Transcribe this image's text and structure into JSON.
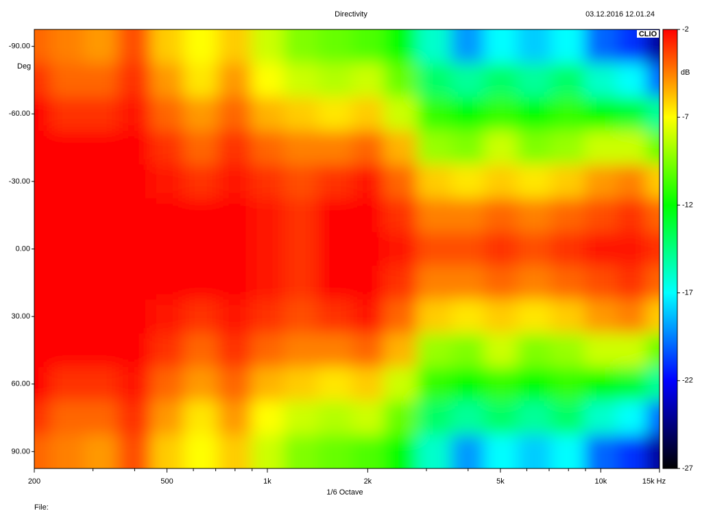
{
  "chart_data": {
    "type": "heatmap",
    "title": "Directivity",
    "timestamp": "03.12.2016 12.01.24",
    "x_label": "1/6 Octave",
    "y_label": "Deg",
    "colorbar_label": "dB",
    "file_label": "File:",
    "logo": "CLIO",
    "log_x": true,
    "xlim": [
      200,
      15000
    ],
    "xticks": [
      200,
      500,
      {
        "value": 1000,
        "label": "1k"
      },
      {
        "value": 2000,
        "label": "2k"
      },
      {
        "value": 5000,
        "label": "5k"
      },
      {
        "value": 10000,
        "label": "10k"
      },
      {
        "value": 15000,
        "label": "15k Hz"
      }
    ],
    "xminorticks": [
      300,
      400,
      600,
      700,
      800,
      900,
      3000,
      4000,
      6000,
      7000,
      8000,
      9000
    ],
    "ylim": [
      -97.5,
      97.5
    ],
    "yticks": [
      {
        "value": -90,
        "label": "-90.00"
      },
      {
        "value": -60,
        "label": "-60.00"
      },
      {
        "value": -30,
        "label": "-30.00"
      },
      {
        "value": 0,
        "label": "0.00"
      },
      {
        "value": 30,
        "label": "30.00"
      },
      {
        "value": 60,
        "label": "60.00"
      },
      {
        "value": 90,
        "label": "90.00"
      }
    ],
    "zlim": [
      -27,
      -2
    ],
    "zticks": [
      -2,
      -7,
      -12,
      -17,
      -22,
      -27
    ],
    "colormap": [
      "#000000",
      "#0000ff",
      "#00ffff",
      "#00ff00",
      "#ffff00",
      "#ff0000"
    ],
    "x": [
      200,
      250,
      315,
      400,
      500,
      630,
      800,
      1000,
      1250,
      1600,
      2000,
      2500,
      3150,
      4000,
      5000,
      6300,
      8000,
      10000,
      12500,
      15000
    ],
    "y": [
      -90,
      -75,
      -60,
      -45,
      -30,
      -15,
      0,
      15,
      30,
      45,
      60,
      75,
      90
    ],
    "z": [
      [
        -4,
        -4.5,
        -5,
        -3.5,
        -6,
        -7,
        -6,
        -8,
        -9.5,
        -10,
        -10.5,
        -12,
        -16,
        -19,
        -17,
        -18,
        -17,
        -20,
        -21,
        -24
      ],
      [
        -3,
        -4,
        -4,
        -3,
        -5,
        -6.5,
        -5,
        -7,
        -8,
        -8.5,
        -8,
        -10,
        -14,
        -15,
        -14,
        -15,
        -14,
        -16,
        -17,
        -20
      ],
      [
        -2,
        -3,
        -3,
        -2.5,
        -4,
        -5,
        -4,
        -5.5,
        -6,
        -6.5,
        -6,
        -8,
        -11,
        -12,
        -11,
        -12,
        -11,
        -12,
        -13,
        -15
      ],
      [
        -2,
        -2,
        -2,
        -2,
        -3,
        -4,
        -3,
        -4,
        -4.5,
        -4.5,
        -4,
        -5.5,
        -9,
        -9.5,
        -8,
        -9.5,
        -9,
        -8,
        -8,
        -10
      ],
      [
        -2,
        -2,
        -2,
        -2,
        -2.5,
        -3,
        -2.5,
        -3,
        -3.5,
        -3,
        -2.5,
        -4,
        -6,
        -6.5,
        -6,
        -6.5,
        -6,
        -5,
        -4.5,
        -6
      ],
      [
        -2,
        -2,
        -2,
        -2,
        -2,
        -2,
        -2,
        -2.5,
        -3,
        -2,
        -2,
        -3,
        -4.5,
        -4.5,
        -4,
        -4.5,
        -4,
        -3.5,
        -3,
        -4
      ],
      [
        -2,
        -2,
        -2,
        -2,
        -2,
        -2,
        -2,
        -2.5,
        -3,
        -2,
        -2,
        -2.5,
        -3.5,
        -3.5,
        -3,
        -3.5,
        -3,
        -2.5,
        -2.5,
        -3
      ],
      [
        -2,
        -2,
        -2,
        -2,
        -2,
        -2,
        -2,
        -2.5,
        -3,
        -2,
        -2,
        -3,
        -4.5,
        -4.5,
        -4,
        -4.5,
        -4,
        -3.5,
        -3,
        -4
      ],
      [
        -2,
        -2,
        -2,
        -2,
        -2.5,
        -3,
        -2.5,
        -3,
        -3.5,
        -3,
        -2.5,
        -4,
        -6,
        -6.5,
        -6,
        -6.5,
        -6,
        -5,
        -4.5,
        -6
      ],
      [
        -2,
        -2,
        -2,
        -2,
        -3,
        -4,
        -3,
        -4,
        -4.5,
        -4.5,
        -4,
        -5.5,
        -9,
        -9.5,
        -8,
        -9.5,
        -9,
        -8,
        -8,
        -10
      ],
      [
        -2,
        -3,
        -3,
        -2.5,
        -4,
        -5,
        -4,
        -5.5,
        -6,
        -6.5,
        -6,
        -8,
        -11,
        -12,
        -11,
        -12,
        -11,
        -12,
        -13,
        -15
      ],
      [
        -3,
        -4,
        -4,
        -3,
        -5,
        -6.5,
        -5,
        -7,
        -8,
        -8.5,
        -8,
        -10,
        -14,
        -15,
        -14,
        -15,
        -14,
        -16,
        -17,
        -20
      ],
      [
        -4,
        -4.5,
        -5,
        -3.5,
        -6,
        -7,
        -6,
        -8,
        -9.5,
        -10,
        -10.5,
        -12,
        -16,
        -19,
        -17,
        -18,
        -17,
        -20,
        -21,
        -24
      ]
    ]
  }
}
